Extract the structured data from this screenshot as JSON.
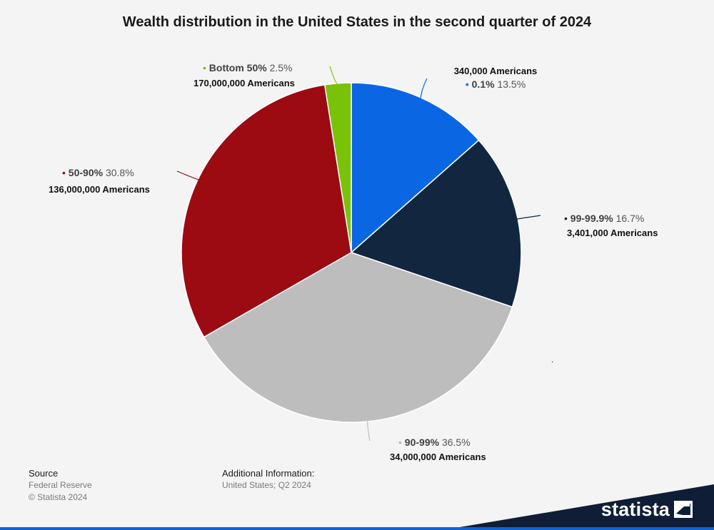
{
  "chart_data": {
    "type": "pie",
    "title": "Wealth distribution in the United States in the second quarter of 2024",
    "slices": [
      {
        "name": "0.1%",
        "value": 13.5,
        "value_label": "13.5%",
        "population": "340,000 Americans",
        "color": "#0b66e4"
      },
      {
        "name": "99-99.9%",
        "value": 16.7,
        "value_label": "16.7%",
        "population": "3,401,000 Americans",
        "color": "#12263f"
      },
      {
        "name": "90-99%",
        "value": 36.5,
        "value_label": "36.5%",
        "population": "34,000,000 Americans",
        "color": "#bdbdbd"
      },
      {
        "name": "50-90%",
        "value": 30.8,
        "value_label": "30.8%",
        "population": "136,000,000 Americans",
        "color": "#9c0a12"
      },
      {
        "name": "Bottom 50%",
        "value": 2.5,
        "value_label": "2.5%",
        "population": "170,000,000 Americans",
        "color": "#7ac20a"
      }
    ],
    "start_angle": "12 o'clock",
    "direction": "clockwise",
    "legend": "none (data labels)"
  },
  "footer": {
    "source_heading": "Source",
    "source_name": "Federal Reserve",
    "copyright": "© Statista 2024",
    "additional_heading": "Additional Information:",
    "additional_text": "United States; Q2 2024"
  },
  "brand": {
    "name": "statista",
    "bar_color": "#0f1e36",
    "accent_color": "#0b64d9",
    "icon": "statista-flag-icon"
  }
}
